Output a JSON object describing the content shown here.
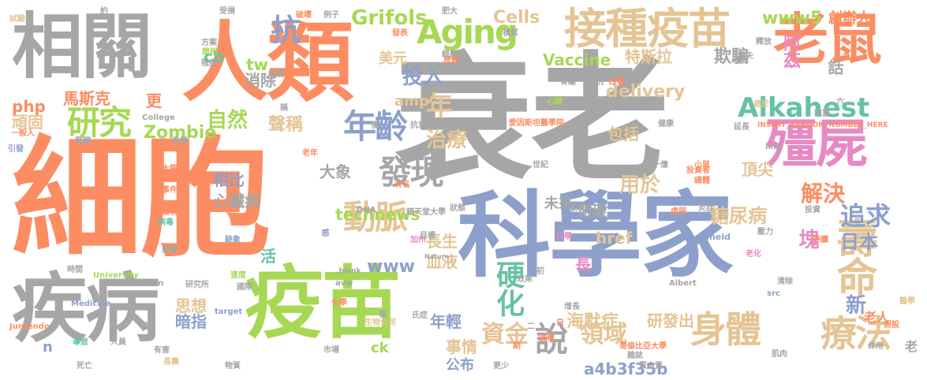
{
  "palette": {
    "gray": "#a6a6a6",
    "orange": "#fc8d62",
    "blue": "#8da0cb",
    "green": "#a6d854",
    "pink": "#e78ac3",
    "yellow": "#ffd92f",
    "tan": "#e5c494",
    "teal": "#66c2a5"
  },
  "words": [
    "衰老",
    "細胞",
    "科學家",
    "人類",
    "疫苗",
    "老鼠",
    "相關",
    "疾病",
    "殭屍",
    "疫苗",
    "接種",
    "壽命",
    "療法",
    "身體",
    "Aging",
    "Alkahest",
    "研究",
    "年齡",
    "發現",
    "動脈",
    "說",
    "抗",
    "硬化",
    "聲稱",
    "治療",
    "technews",
    "資金",
    "領域",
    "投入",
    "年",
    "Zombie",
    "自然",
    "Vaccine",
    "美元",
    "解決",
    "追求",
    "日本",
    "糖尿病",
    "海默症",
    "用於",
    "www5",
    "阿茲",
    "Cells",
    "delivery",
    "www",
    "血液",
    "欺騙",
    "php",
    "馬斯克",
    "新",
    "塊",
    "Grifols",
    "a4b3f35b",
    "長生",
    "研發出",
    "包括",
    "事情",
    "公布",
    "年輕",
    "頑固",
    "tw",
    "特斯拉",
    "創辦人",
    "話",
    "頂尖",
    "大象",
    "相比",
    "心臟病",
    "思想",
    "暗指",
    "消除",
    "未來",
    "阻礙",
    "老人",
    "更",
    "amp",
    "href",
    "cb",
    "活",
    "ck",
    "n",
    "長",
    "老",
    "愛因斯坦醫學院",
    "INSERT_RANDOM_NUMBER_HERE",
    "zoneid",
    "Medicine",
    "University",
    "Juntendo",
    "Einstein",
    "Nature",
    "College",
    "Albert",
    "src",
    "img",
    "_blank",
    "target",
    "方案",
    "競相",
    "程度",
    "破壞",
    "例子",
    "受損",
    "發表",
    "積累",
    "歷經",
    "導致",
    "死亡",
    "一般人",
    "引發",
    "骨質",
    "大腦",
    "事件",
    "吸引",
    "病毒",
    "時間",
    "影響",
    "研究所",
    "國際",
    "生物公司",
    "化學",
    "順天堂大學",
    "加州",
    "目標",
    "科學",
    "效果",
    "初",
    "增長",
    "虛弱",
    "投資者",
    "總體",
    "哥倫比亞大學",
    "醫學",
    "假設",
    "作用",
    "肌肉",
    "蛋白質",
    "雜誌",
    "市場",
    "物質",
    "長壽",
    "人員",
    "氏症",
    "德",
    "更少",
    "白",
    "二",
    "世紀",
    "下降",
    "感染",
    "心臟",
    "健康",
    "投資",
    "小鼠",
    "壓力",
    "持續",
    "老化",
    "炎症",
    "清除",
    "阻塞",
    "六",
    "處於",
    "未",
    "釋放",
    "約",
    "試驗",
    "肥大",
    "數十億",
    "對抗",
    "改善",
    "背離",
    "經歷",
    "狀態",
    "腦",
    "有害",
    "稱",
    "慢",
    "老年",
    "有名",
    "抗衰",
    "收購",
    "延長",
    "腎臟",
    "損失",
    "過程",
    "速度",
    "感",
    "期",
    "跡象",
    "DNA",
    "avw",
    "a",
    "顛覆性",
    "區域",
    "輸為",
    "柏金森"
  ]
}
